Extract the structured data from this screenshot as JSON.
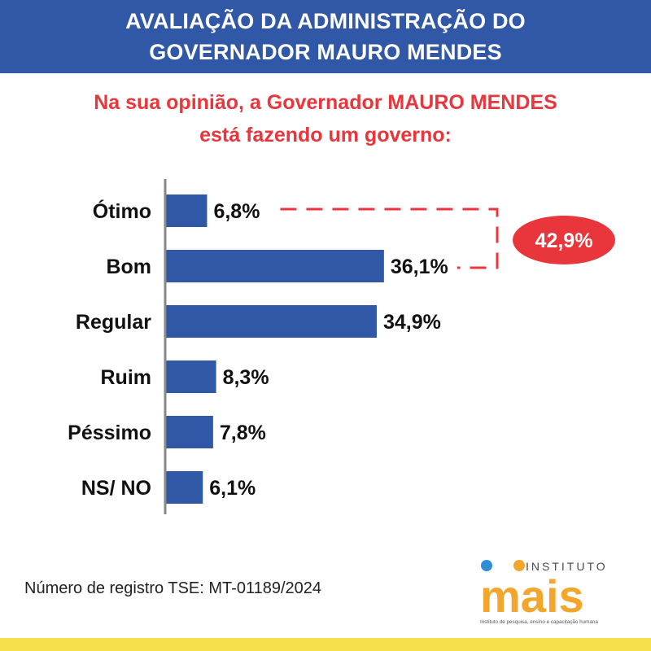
{
  "header": {
    "line1": "AVALIAÇÃO DA ADMINISTRAÇÃO DO",
    "line2": "GOVERNADOR MAURO MENDES"
  },
  "question": {
    "line1": "Na sua opinião, a Governador MAURO MENDES",
    "line2": "está fazendo um governo:"
  },
  "chart_data": {
    "type": "bar",
    "orientation": "horizontal",
    "categories": [
      "Ótimo",
      "Bom",
      "Regular",
      "Ruim",
      "Péssimo",
      "NS/ NO"
    ],
    "values": [
      6.8,
      36.1,
      34.9,
      8.3,
      7.8,
      6.1
    ],
    "value_labels": [
      "6,8%",
      "36,1%",
      "34,9%",
      "8,3%",
      "7,8%",
      "6,1%"
    ],
    "annotation": {
      "label": "42,9%",
      "brackets": [
        "Ótimo",
        "Bom"
      ]
    },
    "colors": {
      "bar": "#3058a6",
      "annotation": "#e8363c"
    }
  },
  "footer": {
    "registration": "Número de registro TSE: MT-01189/2024"
  },
  "logo": {
    "top": "INSTITUTO",
    "word": "MAIS",
    "tagline": "Instituto de pesquisa, ensino e capacitação humana"
  },
  "colors": {
    "header_bg": "#3058a6",
    "accent_red": "#e8363c",
    "bottom_bar": "#f6e14b",
    "logo_orange": "#f4a52b",
    "logo_blue": "#2e8fd6"
  }
}
